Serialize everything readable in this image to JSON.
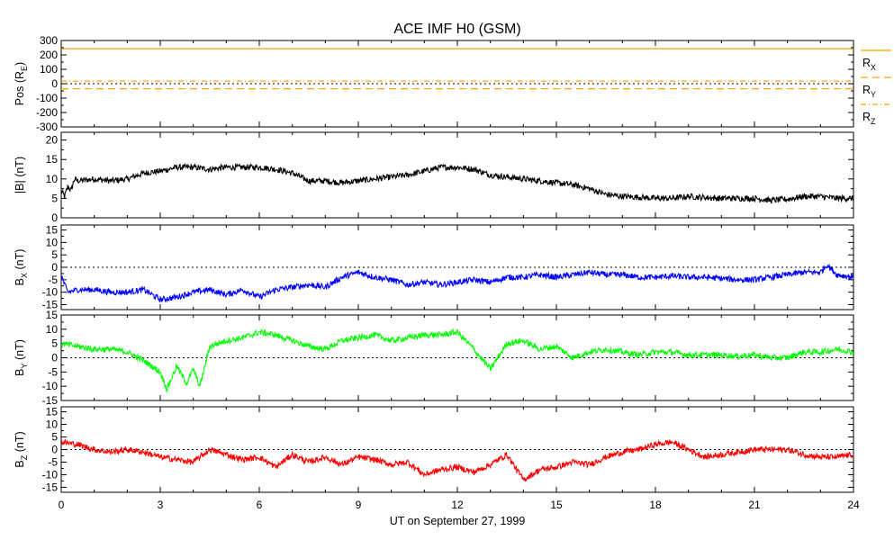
{
  "chart_data": {
    "type": "line",
    "title": "ACE IMF H0 (GSM)",
    "xlabel": "UT on September 27, 1999",
    "xlim": [
      0,
      24
    ],
    "x_ticks": [
      "0",
      "3",
      "6",
      "9",
      "12",
      "15",
      "18",
      "21",
      "24"
    ],
    "x_tick_values": [
      0,
      3,
      6,
      9,
      12,
      15,
      18,
      21,
      24
    ],
    "panels": [
      {
        "id": "pos",
        "ylabel": "Pos (R",
        "ylabel_sub": "E",
        "ylabel_end": ")",
        "ylim": [
          -300,
          300
        ],
        "y_ticks": [
          "300",
          "200",
          "100",
          "0",
          "-100",
          "-200",
          "-300"
        ],
        "y_tick_values": [
          300,
          200,
          100,
          0,
          -100,
          -200,
          -300
        ],
        "zero_line": true,
        "series": [
          {
            "name": "R",
            "sub": "X",
            "color": "#ffa500",
            "dash": "solid",
            "x": [
              0,
              24
            ],
            "y": [
              243,
              243
            ]
          },
          {
            "name": "R",
            "sub": "Y",
            "color": "#ffa500",
            "dash": "dash",
            "x": [
              0,
              24
            ],
            "y": [
              -35,
              -35
            ]
          },
          {
            "name": "R",
            "sub": "Z",
            "color": "#ffa500",
            "dash": "dashdot",
            "x": [
              0,
              24
            ],
            "y": [
              18,
              18
            ]
          }
        ]
      },
      {
        "id": "bmag",
        "ylabel": "|B| (nT)",
        "ylim": [
          0,
          22
        ],
        "y_ticks": [
          "20",
          "15",
          "10",
          "5",
          "0"
        ],
        "y_tick_values": [
          20,
          15,
          10,
          5,
          0
        ],
        "zero_line": false,
        "series": [
          {
            "color": "#000000",
            "x": [
              0,
              0.1,
              0.2,
              0.3,
              0.4,
              0.5,
              1,
              1.5,
              2,
              2.5,
              3,
              3.5,
              4,
              4.5,
              5,
              5.5,
              6,
              6.5,
              7,
              7.5,
              8,
              8.5,
              9,
              9.5,
              10,
              10.5,
              11,
              11.5,
              12,
              12.5,
              13,
              13.5,
              14,
              14.5,
              15,
              15.5,
              16,
              16.5,
              17,
              17.5,
              18,
              18.5,
              19,
              19.5,
              20,
              20.5,
              21,
              21.5,
              22,
              22.5,
              23,
              23.5,
              24
            ],
            "y": [
              7,
              5.5,
              8,
              7,
              10,
              9.5,
              10,
              9.5,
              10,
              11.5,
              12,
              13,
              13,
              12.5,
              13,
              13,
              13,
              12.5,
              11.5,
              9.5,
              9.5,
              9,
              9.5,
              10,
              10.5,
              11,
              12,
              13,
              13,
              12.5,
              11,
              10.5,
              10,
              9.5,
              9,
              8.5,
              7.5,
              6,
              5.5,
              5.3,
              5,
              5,
              5.5,
              5.2,
              5,
              5,
              5,
              4.5,
              4.8,
              5.5,
              5.5,
              5,
              5
            ]
          }
        ]
      },
      {
        "id": "bx",
        "ylabel": "B",
        "ylabel_sub": "X",
        "ylabel_end": " (nT)",
        "ylim": [
          -17,
          17
        ],
        "y_ticks": [
          "15",
          "10",
          "5",
          "0",
          "-5",
          "-10",
          "-15"
        ],
        "y_tick_values": [
          15,
          10,
          5,
          0,
          -5,
          -10,
          -15
        ],
        "zero_line": true,
        "series": [
          {
            "color": "#0000ff",
            "x": [
              0,
              0.1,
              0.2,
              0.5,
              1,
              1.5,
              2,
              2.5,
              3,
              3.5,
              4,
              4.5,
              5,
              5.5,
              6,
              6.5,
              7,
              7.5,
              8,
              8.5,
              9,
              9.5,
              10,
              10.5,
              11,
              11.5,
              12,
              12.5,
              13,
              13.5,
              14,
              14.5,
              15,
              15.5,
              16,
              16.5,
              17,
              17.5,
              18,
              18.5,
              19,
              19.5,
              20,
              20.5,
              21,
              21.5,
              22,
              22.5,
              23,
              23.2,
              23.5,
              24
            ],
            "y": [
              -3,
              -7,
              -10,
              -9,
              -9,
              -10,
              -10,
              -9,
              -13,
              -12,
              -10,
              -9,
              -11,
              -9,
              -12,
              -9,
              -8,
              -7,
              -8,
              -4,
              -2,
              -4,
              -5,
              -7,
              -6,
              -7,
              -6,
              -5,
              -6,
              -4,
              -4,
              -3,
              -4,
              -3,
              -2,
              -3,
              -3,
              -4,
              -4,
              -3.5,
              -4,
              -4,
              -4.5,
              -5,
              -5,
              -4,
              -3,
              -2,
              -2,
              1,
              -3,
              -4
            ]
          }
        ]
      },
      {
        "id": "by",
        "ylabel": "B",
        "ylabel_sub": "Y",
        "ylabel_end": " (nT)",
        "ylim": [
          -15,
          15
        ],
        "y_ticks": [
          "15",
          "10",
          "5",
          "0",
          "-5",
          "-10",
          "-15"
        ],
        "y_tick_values": [
          15,
          10,
          5,
          0,
          -5,
          -10,
          -15
        ],
        "zero_line": true,
        "series": [
          {
            "color": "#00ff00",
            "x": [
              0,
              0.5,
              1,
              1.5,
              2,
              2.5,
              3,
              3.2,
              3.5,
              3.8,
              4,
              4.2,
              4.5,
              5,
              5.5,
              6,
              6.5,
              7,
              7.5,
              8,
              8.5,
              9,
              9.5,
              10,
              10.5,
              11,
              11.5,
              12,
              12.5,
              13,
              13.5,
              14,
              14.5,
              15,
              15.5,
              16,
              16.5,
              17,
              17.5,
              18,
              18.5,
              19,
              19.5,
              20,
              20.5,
              21,
              21.5,
              22,
              22.5,
              23,
              23.5,
              24
            ],
            "y": [
              5,
              4,
              3,
              3,
              2,
              -1,
              -5,
              -11,
              -3,
              -9,
              -4,
              -10,
              4,
              6,
              7,
              9,
              8,
              6,
              4,
              3,
              6,
              7,
              8,
              6,
              7,
              8,
              8,
              9,
              3,
              -4,
              5,
              6,
              3,
              4,
              0,
              2,
              3,
              2,
              1,
              2,
              2,
              1,
              1,
              1,
              0.5,
              1,
              0,
              0,
              2,
              2,
              3,
              2
            ]
          }
        ]
      },
      {
        "id": "bz",
        "ylabel": "B",
        "ylabel_sub": "Z",
        "ylabel_end": " (nT)",
        "ylim": [
          -17,
          17
        ],
        "y_ticks": [
          "15",
          "10",
          "5",
          "0",
          "-5",
          "-10",
          "-15"
        ],
        "y_tick_values": [
          15,
          10,
          5,
          0,
          -5,
          -10,
          -15
        ],
        "zero_line": true,
        "series": [
          {
            "color": "#ff0000",
            "x": [
              0,
              0.5,
              1,
              1.5,
              2,
              2.5,
              3,
              3.5,
              4,
              4.5,
              5,
              5.5,
              6,
              6.5,
              7,
              7.5,
              8,
              8.5,
              9,
              9.5,
              10,
              10.5,
              11,
              11.5,
              12,
              12.5,
              13,
              13.5,
              14,
              14.5,
              15,
              15.5,
              16,
              16.5,
              17,
              17.5,
              18,
              18.5,
              19,
              19.5,
              20,
              20.5,
              21,
              21.5,
              22,
              22.5,
              23,
              23.5,
              24
            ],
            "y": [
              3,
              2,
              0,
              -1,
              0,
              -1,
              -3,
              -4,
              -5,
              0,
              -2,
              -4,
              -3,
              -7,
              -2,
              -5,
              -3,
              -6,
              -3,
              -4,
              -6,
              -5,
              -10,
              -8,
              -7,
              -9,
              -6,
              -2,
              -12,
              -8,
              -7,
              -5,
              -6,
              -3,
              -1,
              0,
              2,
              3,
              0,
              -3,
              -2,
              -1,
              0,
              0,
              0,
              -2,
              -3,
              -3,
              -2
            ]
          }
        ]
      }
    ]
  }
}
